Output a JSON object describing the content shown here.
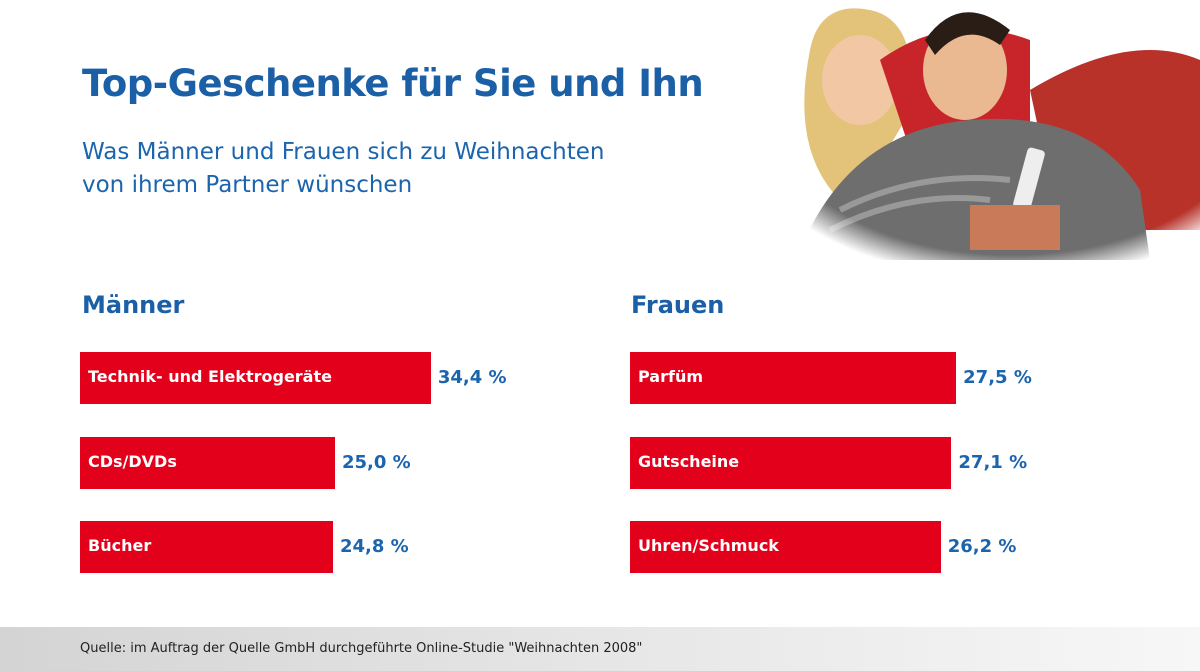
{
  "title": "Top-Geschenke für Sie und Ihn",
  "subtitle_line1": "Was Männer und Frauen sich zu Weihnachten",
  "subtitle_line2": "von ihrem Partner wünschen",
  "source": "Quelle: im Auftrag der Quelle GmbH durchgeführte Online-Studie \"Weihnachten 2008\"",
  "colors": {
    "bar": "#e2001a",
    "text_blue": "#1b5fa6"
  },
  "chart_data": [
    {
      "type": "bar",
      "orientation": "horizontal",
      "title": "Männer",
      "categories": [
        "Technik- und Elektrogeräte",
        "CDs/DVDs",
        "Bücher"
      ],
      "values": [
        34.4,
        25.0,
        24.8
      ],
      "value_labels": [
        "34,4 %",
        "25,0 %",
        "24,8 %"
      ],
      "unit": "%"
    },
    {
      "type": "bar",
      "orientation": "horizontal",
      "title": "Frauen",
      "categories": [
        "Parfüm",
        "Gutscheine",
        "Uhren/Schmuck"
      ],
      "values": [
        27.5,
        27.1,
        26.2
      ],
      "value_labels": [
        "27,5 %",
        "27,1 %",
        "26,2 %"
      ],
      "unit": "%"
    }
  ]
}
